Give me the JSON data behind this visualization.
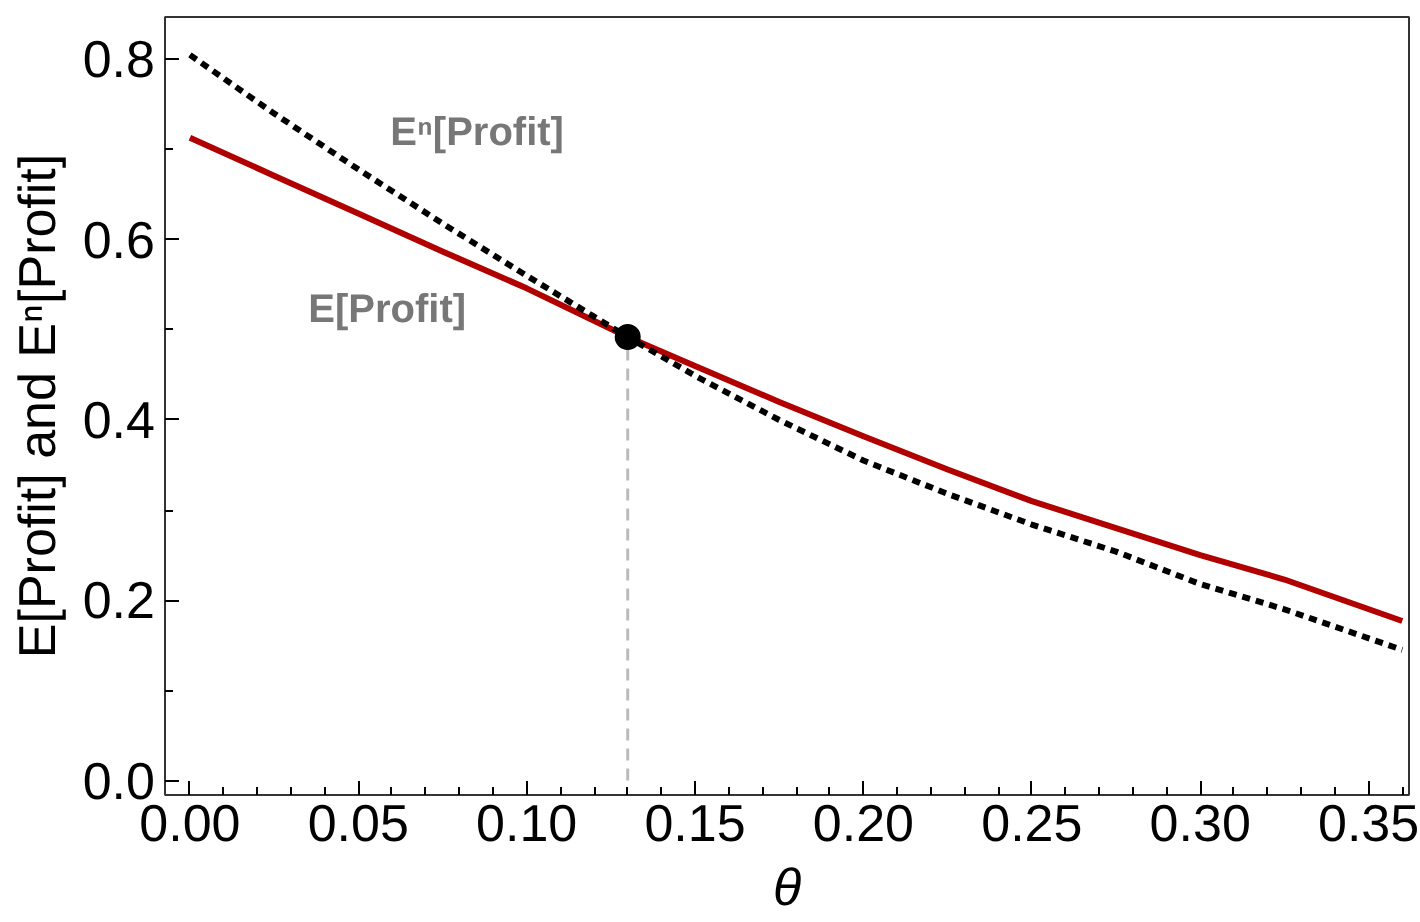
{
  "chart_data": {
    "type": "line",
    "xlabel": "θ",
    "ylabel": "E[Profit] and Eⁿ[Profit]",
    "xlim": [
      -0.0074,
      0.362
    ],
    "ylim": [
      -0.016,
      0.847
    ],
    "xticks": [
      {
        "value": 0,
        "label": "0.00"
      },
      {
        "value": 0.05,
        "label": "0.05"
      },
      {
        "value": 0.1,
        "label": "0.10"
      },
      {
        "value": 0.15,
        "label": "0.15"
      },
      {
        "value": 0.2,
        "label": "0.20"
      },
      {
        "value": 0.25,
        "label": "0.25"
      },
      {
        "value": 0.3,
        "label": "0.30"
      },
      {
        "value": 0.35,
        "label": "0.35"
      }
    ],
    "yticks": [
      {
        "value": 0,
        "label": "0.0"
      },
      0.2,
      0.4,
      0.6,
      0.8
    ],
    "grid": false,
    "legend": false,
    "series": [
      {
        "name": "E[Profit]",
        "color": "#b00000",
        "line_style": "solid",
        "x": [
          0,
          0.025,
          0.05,
          0.075,
          0.1,
          0.13,
          0.15,
          0.175,
          0.2,
          0.225,
          0.25,
          0.275,
          0.3,
          0.325,
          0.36
        ],
        "values": [
          0.713,
          0.671,
          0.629,
          0.587,
          0.546,
          0.492,
          0.46,
          0.42,
          0.382,
          0.345,
          0.31,
          0.28,
          0.25,
          0.223,
          0.177
        ]
      },
      {
        "name": "Eⁿ[Profit]",
        "color": "#000000",
        "line_style": "dotted",
        "x": [
          0,
          0.025,
          0.05,
          0.075,
          0.1,
          0.13,
          0.15,
          0.175,
          0.2,
          0.225,
          0.25,
          0.275,
          0.3,
          0.325,
          0.36
        ],
        "values": [
          0.805,
          0.74,
          0.678,
          0.618,
          0.56,
          0.492,
          0.449,
          0.4,
          0.355,
          0.318,
          0.284,
          0.254,
          0.218,
          0.19,
          0.145
        ]
      },
      {
        "color": "#bbbbbb",
        "line_style": "dashed",
        "x": [
          0.13,
          0.13
        ],
        "values": [
          0,
          0.492
        ]
      },
      {
        "type": "scatter",
        "marker": "circle",
        "color": "#000000",
        "x": [
          0.13
        ],
        "values": [
          0.492
        ]
      }
    ]
  }
}
